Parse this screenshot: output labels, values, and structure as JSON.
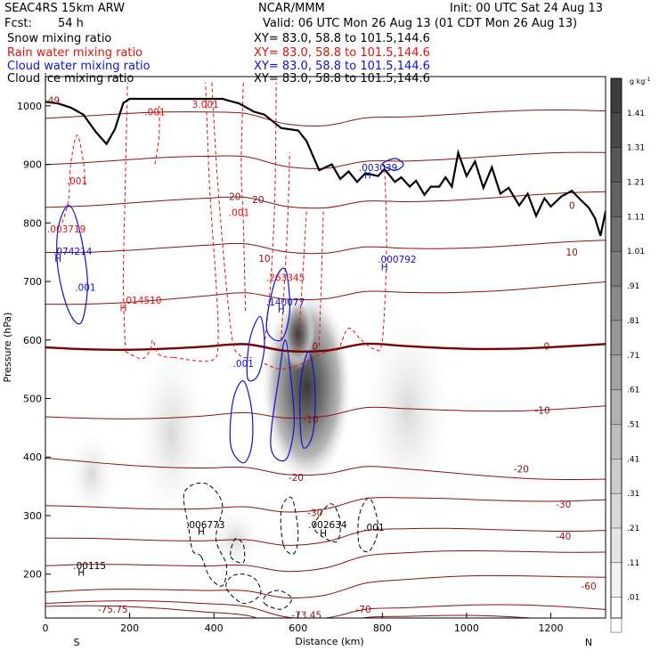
{
  "header": {
    "model": "SEAC4RS 15km ARW",
    "org": "NCAR/MMM",
    "init": "Init: 00 UTC Sat 24 Aug 13",
    "fcst_label": "Fcst:",
    "fcst_value": "54 h",
    "valid": "Valid: 06 UTC Mon 26 Aug 13 (01 CDT Mon 26 Aug 13)"
  },
  "fields": [
    {
      "name": "Snow mixing ratio",
      "xy": "XY=  83.0, 58.8 to 101.5,144.6",
      "color": "#000000"
    },
    {
      "name": "Rain water mixing ratio",
      "xy": "XY=  83.0, 58.8 to 101.5,144.6",
      "color": "#dd1111"
    },
    {
      "name": "Cloud water mixing ratio",
      "xy": "XY=  83.0, 58.8 to 101.5,144.6",
      "color": "#1111cc"
    },
    {
      "name": "Cloud ice mixing ratio",
      "xy": "XY=  83.0, 58.8 to 101.5,144.6",
      "color": "#000000"
    }
  ],
  "chart_data": {
    "type": "contour-cross-section",
    "xlabel": "Distance (km)",
    "ylabel": "Pressure (hPa)",
    "xlim": [
      0,
      1330
    ],
    "ylim": [
      1050,
      125
    ],
    "x_ticks": [
      0,
      200,
      400,
      600,
      800,
      1000,
      1200
    ],
    "x_tick_labels": [
      "0",
      "200",
      "400",
      "600",
      "800",
      "1000",
      "1200"
    ],
    "y_ticks": [
      200,
      300,
      400,
      500,
      600,
      700,
      800,
      900,
      1000
    ],
    "y_tick_labels": [
      "200",
      "300",
      "400",
      "500",
      "600",
      "700",
      "800",
      "900",
      "1000"
    ],
    "end_labels": {
      "left": "S",
      "right": "N"
    },
    "colorbar": {
      "unit": "g kg",
      "unit_exp": "-1",
      "labels": [
        "1.41",
        "1.31",
        "1.21",
        "1.11",
        "1.01",
        ".91",
        ".81",
        ".71",
        ".61",
        ".51",
        ".41",
        ".31",
        ".21",
        ".11",
        ".01"
      ],
      "levels": [
        1.41,
        1.31,
        1.21,
        1.11,
        1.01,
        0.91,
        0.81,
        0.71,
        0.61,
        0.51,
        0.41,
        0.31,
        0.21,
        0.11,
        0.01
      ]
    },
    "temperature_isotherms_C": [
      -75.75,
      -70,
      -60,
      -50,
      -40,
      -30,
      -20,
      -10,
      0,
      10,
      20,
      30,
      40,
      49
    ],
    "temperature_labels": [
      {
        "text": "-75.75",
        "x": 160,
        "p": 140
      },
      {
        "text": "-73.45",
        "x": 620,
        "p": 130
      },
      {
        "text": "-70",
        "x": 755,
        "p": 140
      },
      {
        "text": "-60",
        "x": 1290,
        "p": 180
      },
      {
        "text": "-40",
        "x": 1230,
        "p": 265
      },
      {
        "text": "-30",
        "x": 1230,
        "p": 320
      },
      {
        "text": "-30",
        "x": 640,
        "p": 305
      },
      {
        "text": "-20",
        "x": 1130,
        "p": 380
      },
      {
        "text": "-20",
        "x": 595,
        "p": 365
      },
      {
        "text": "-10",
        "x": 1180,
        "p": 480
      },
      {
        "text": "-10",
        "x": 630,
        "p": 465
      },
      {
        "text": "0",
        "x": 1190,
        "p": 590
      },
      {
        "text": "0",
        "x": 640,
        "p": 590
      },
      {
        "text": "10",
        "x": 1250,
        "p": 750
      },
      {
        "text": "10",
        "x": 520,
        "p": 740
      },
      {
        "text": "20",
        "x": 450,
        "p": 845
      },
      {
        "text": "20",
        "x": 505,
        "p": 840
      },
      {
        "text": "0",
        "x": 1250,
        "p": 830
      },
      {
        "text": "49",
        "x": 20,
        "p": 1010
      }
    ],
    "max_labels": [
      {
        "field": "Cloud ice mixing ratio",
        "text": ".00115",
        "x": 105,
        "p": 215,
        "color": "#000000"
      },
      {
        "field": "Cloud ice mixing ratio",
        "text": ".006773",
        "x": 380,
        "p": 285,
        "color": "#000000"
      },
      {
        "field": "Cloud ice mixing ratio",
        "text": ".002634",
        "x": 670,
        "p": 285,
        "color": "#000000"
      },
      {
        "field": "Cloud ice mixing ratio",
        "text": ".001",
        "x": 780,
        "p": 280,
        "color": "#000000"
      },
      {
        "field": "Cloud water mixing ratio",
        "text": ".001",
        "x": 470,
        "p": 560,
        "color": "#1111cc"
      },
      {
        "field": "Cloud water mixing ratio",
        "text": ".140077",
        "x": 570,
        "p": 665,
        "color": "#1111cc"
      },
      {
        "field": "Rain water mixing ratio",
        "text": ".263345",
        "x": 570,
        "p": 707,
        "color": "#dd1111"
      },
      {
        "field": "Rain water mixing ratio",
        "text": ".014510",
        "x": 230,
        "p": 668,
        "color": "#dd1111"
      },
      {
        "field": "Cloud water mixing ratio",
        "text": ".001",
        "x": 95,
        "p": 690,
        "color": "#1111cc"
      },
      {
        "field": "Cloud water mixing ratio",
        "text": ".074214",
        "x": 65,
        "p": 752,
        "color": "#1111cc"
      },
      {
        "field": "Rain water mixing ratio",
        "text": ".003719",
        "x": 50,
        "p": 790,
        "color": "#dd1111"
      },
      {
        "field": "Cloud water mixing ratio",
        "text": ".000792",
        "x": 835,
        "p": 738,
        "color": "#1111cc"
      },
      {
        "field": "Rain water mixing ratio",
        "text": ".001",
        "x": 460,
        "p": 818,
        "color": "#dd1111"
      },
      {
        "field": "Rain water mixing ratio",
        "text": ".001",
        "x": 75,
        "p": 872,
        "color": "#dd1111"
      },
      {
        "field": "Cloud water mixing ratio",
        "text": ".003039",
        "x": 790,
        "p": 895,
        "color": "#1111cc"
      },
      {
        "field": "Rain water mixing ratio",
        "text": ".001",
        "x": 260,
        "p": 990,
        "color": "#dd1111"
      },
      {
        "field": "Rain water mixing ratio",
        "text": "3.001",
        "x": 380,
        "p": 1003,
        "color": "#dd1111"
      }
    ],
    "max_markers": [
      {
        "text": "H",
        "x": 85,
        "p": 203,
        "color": "#000000"
      },
      {
        "text": "H",
        "x": 370,
        "p": 273,
        "color": "#000000"
      },
      {
        "text": "H",
        "x": 660,
        "p": 270,
        "color": "#000000"
      },
      {
        "text": "H",
        "x": 560,
        "p": 653,
        "color": "#1111cc"
      },
      {
        "text": "H",
        "x": 185,
        "p": 655,
        "color": "#dd1111"
      },
      {
        "text": "H",
        "x": 30,
        "p": 740,
        "color": "#1111cc"
      },
      {
        "text": "H",
        "x": 805,
        "p": 725,
        "color": "#1111cc"
      },
      {
        "text": "H",
        "x": 765,
        "p": 882,
        "color": "#1111cc"
      }
    ],
    "terrain_profile": [
      [
        0,
        1007
      ],
      [
        30,
        1004
      ],
      [
        60,
        997
      ],
      [
        90,
        985
      ],
      [
        120,
        955
      ],
      [
        145,
        935
      ],
      [
        165,
        960
      ],
      [
        185,
        1005
      ],
      [
        200,
        1012
      ],
      [
        420,
        1012
      ],
      [
        460,
        1004
      ],
      [
        495,
        990
      ],
      [
        520,
        985
      ],
      [
        560,
        962
      ],
      [
        600,
        958
      ],
      [
        620,
        940
      ],
      [
        650,
        890
      ],
      [
        680,
        900
      ],
      [
        700,
        875
      ],
      [
        720,
        888
      ],
      [
        740,
        870
      ],
      [
        760,
        885
      ],
      [
        790,
        880
      ],
      [
        805,
        892
      ],
      [
        830,
        870
      ],
      [
        845,
        878
      ],
      [
        865,
        862
      ],
      [
        880,
        872
      ],
      [
        900,
        848
      ],
      [
        915,
        862
      ],
      [
        935,
        862
      ],
      [
        950,
        878
      ],
      [
        965,
        862
      ],
      [
        980,
        920
      ],
      [
        1000,
        880
      ],
      [
        1020,
        905
      ],
      [
        1040,
        860
      ],
      [
        1060,
        895
      ],
      [
        1080,
        850
      ],
      [
        1100,
        860
      ],
      [
        1125,
        830
      ],
      [
        1145,
        850
      ],
      [
        1165,
        812
      ],
      [
        1185,
        842
      ],
      [
        1200,
        828
      ],
      [
        1225,
        845
      ],
      [
        1250,
        855
      ],
      [
        1270,
        840
      ],
      [
        1290,
        826
      ],
      [
        1305,
        808
      ],
      [
        1318,
        778
      ],
      [
        1330,
        820
      ]
    ]
  }
}
